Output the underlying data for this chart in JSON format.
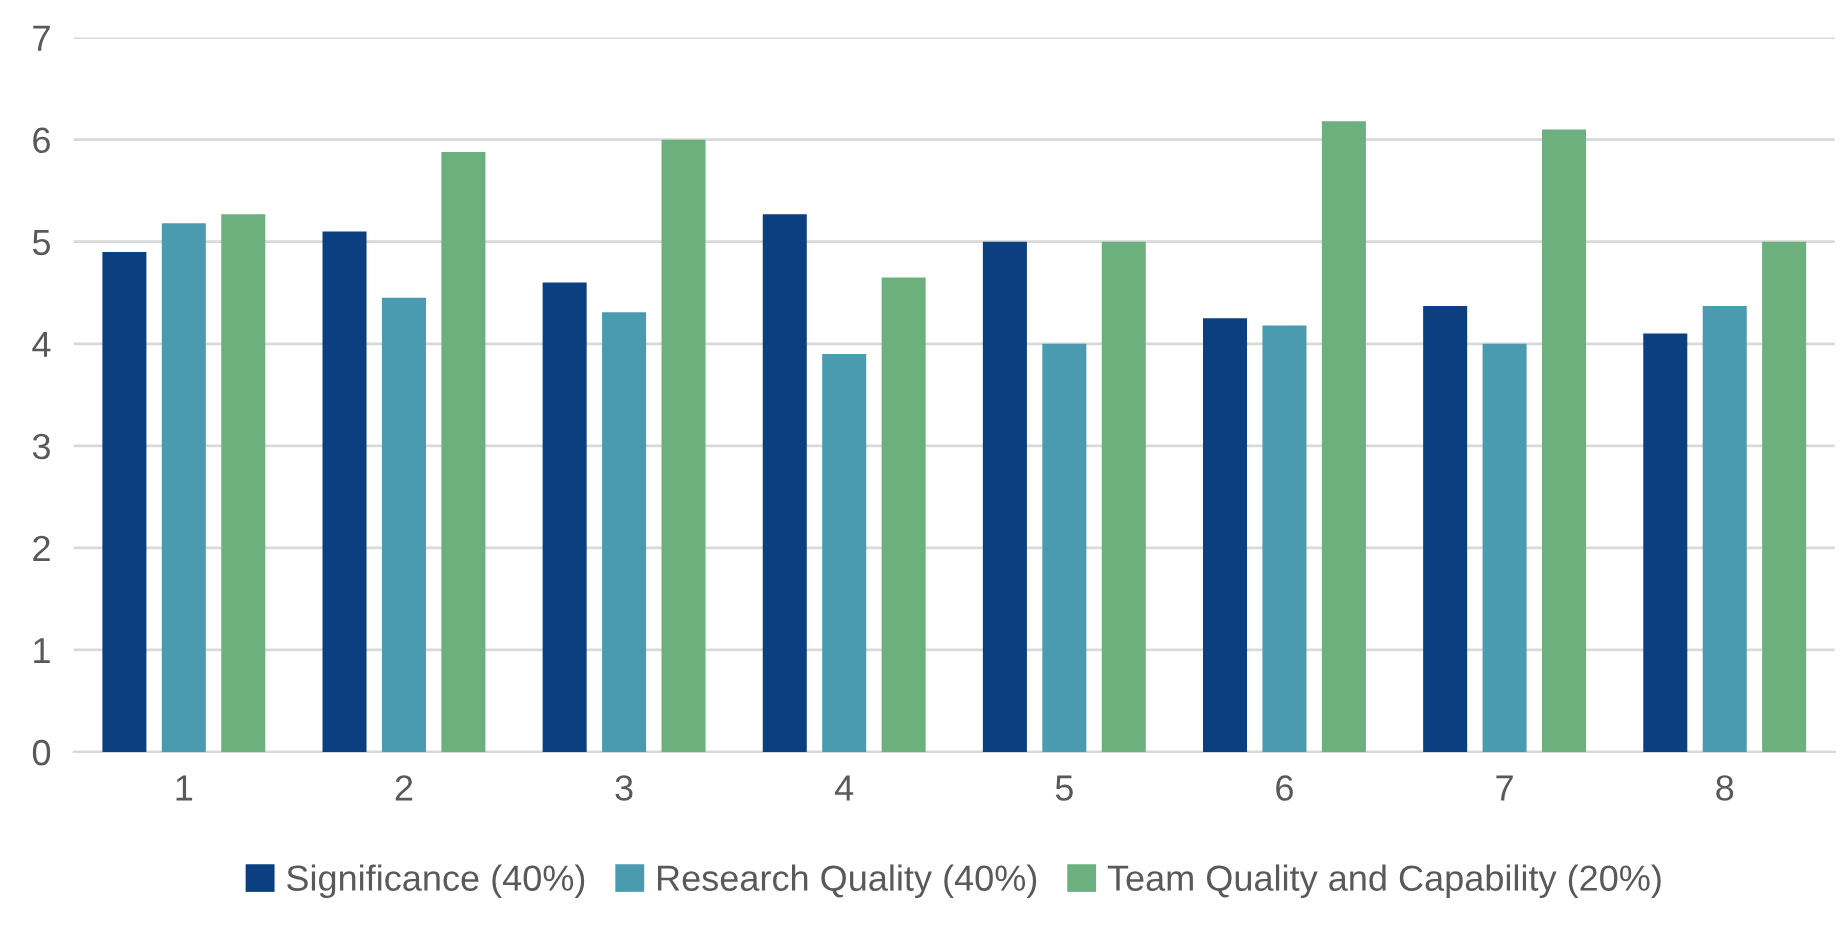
{
  "chart_data": {
    "type": "bar",
    "categories": [
      "1",
      "2",
      "3",
      "4",
      "5",
      "6",
      "7",
      "8"
    ],
    "series": [
      {
        "name": "Significance (40%)",
        "color": "#0b3f7f",
        "values": [
          4.9,
          5.1,
          4.6,
          5.27,
          5.0,
          4.25,
          4.37,
          4.1
        ]
      },
      {
        "name": "Research Quality (40%)",
        "color": "#4a9bb0",
        "values": [
          5.18,
          4.45,
          4.31,
          3.9,
          4.0,
          4.18,
          4.0,
          4.37
        ]
      },
      {
        "name": "Team Quality and Capability (20%)",
        "color": "#6cb07e",
        "values": [
          5.27,
          5.88,
          6.0,
          4.65,
          5.0,
          6.18,
          6.1,
          5.0
        ]
      }
    ],
    "ylim": [
      0,
      7
    ],
    "yticks": [
      0,
      1,
      2,
      3,
      4,
      5,
      6,
      7
    ],
    "grid": "y",
    "legend": "bottom"
  }
}
